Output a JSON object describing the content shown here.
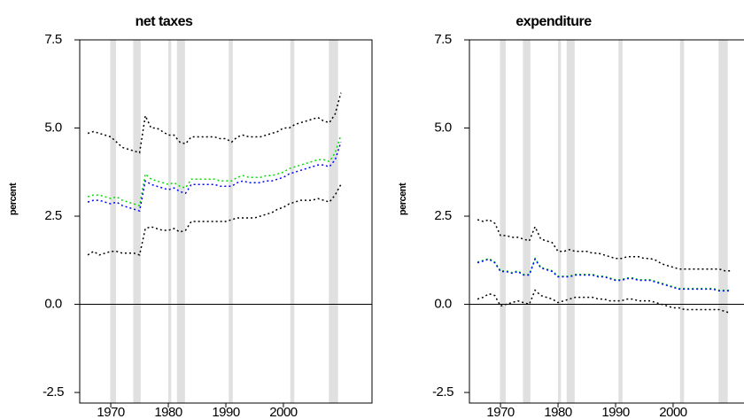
{
  "chart_data": [
    {
      "type": "line",
      "title": "net taxes",
      "y_label": "percent",
      "x": [
        1966,
        1967,
        1968,
        1969,
        1970,
        1971,
        1972,
        1973,
        1974,
        1975,
        1976,
        1977,
        1978,
        1979,
        1980,
        1981,
        1982,
        1983,
        1984,
        1985,
        1986,
        1987,
        1988,
        1989,
        1990,
        1991,
        1992,
        1993,
        1994,
        1995,
        1996,
        1997,
        1998,
        1999,
        2000,
        2001,
        2002,
        2003,
        2004,
        2005,
        2006,
        2007,
        2008,
        2009,
        2010
      ],
      "series": [
        {
          "color": "#000000",
          "values": [
            4.85,
            4.9,
            4.85,
            4.8,
            4.75,
            4.6,
            4.45,
            4.4,
            4.35,
            4.3,
            5.35,
            5.0,
            5.0,
            4.9,
            4.8,
            4.8,
            4.6,
            4.55,
            4.75,
            4.75,
            4.75,
            4.75,
            4.75,
            4.7,
            4.7,
            4.6,
            4.75,
            4.8,
            4.75,
            4.75,
            4.75,
            4.8,
            4.85,
            4.9,
            5.0,
            5.0,
            5.1,
            5.15,
            5.2,
            5.25,
            5.3,
            5.2,
            5.15,
            5.4,
            6.0
          ]
        },
        {
          "color": "#00dd00",
          "values": [
            3.05,
            3.1,
            3.1,
            3.05,
            3.0,
            3.05,
            2.95,
            2.9,
            2.85,
            2.8,
            3.7,
            3.55,
            3.5,
            3.45,
            3.4,
            3.45,
            3.35,
            3.3,
            3.55,
            3.55,
            3.55,
            3.55,
            3.55,
            3.5,
            3.5,
            3.5,
            3.6,
            3.65,
            3.6,
            3.6,
            3.6,
            3.65,
            3.65,
            3.7,
            3.75,
            3.85,
            3.9,
            3.95,
            4.0,
            4.05,
            4.1,
            4.1,
            4.05,
            4.3,
            4.8
          ]
        },
        {
          "color": "#0000ff",
          "values": [
            2.9,
            2.95,
            2.95,
            2.9,
            2.85,
            2.9,
            2.8,
            2.75,
            2.7,
            2.65,
            3.5,
            3.4,
            3.35,
            3.3,
            3.25,
            3.3,
            3.2,
            3.15,
            3.4,
            3.4,
            3.4,
            3.4,
            3.4,
            3.35,
            3.35,
            3.35,
            3.45,
            3.5,
            3.45,
            3.45,
            3.45,
            3.5,
            3.5,
            3.55,
            3.6,
            3.7,
            3.75,
            3.8,
            3.85,
            3.9,
            3.95,
            3.95,
            3.9,
            4.1,
            4.6
          ]
        },
        {
          "color": "#000000",
          "values": [
            1.4,
            1.5,
            1.4,
            1.45,
            1.5,
            1.5,
            1.45,
            1.45,
            1.45,
            1.4,
            2.15,
            2.2,
            2.15,
            2.1,
            2.1,
            2.15,
            2.05,
            2.1,
            2.35,
            2.35,
            2.35,
            2.35,
            2.35,
            2.35,
            2.35,
            2.4,
            2.45,
            2.45,
            2.45,
            2.45,
            2.5,
            2.55,
            2.6,
            2.7,
            2.75,
            2.85,
            2.9,
            2.95,
            2.95,
            2.95,
            3.0,
            2.95,
            2.9,
            3.1,
            3.4
          ]
        }
      ],
      "shading": [
        [
          1969.9,
          1970.9
        ],
        [
          1973.9,
          1975.2
        ],
        [
          1980.0,
          1980.5
        ],
        [
          1981.5,
          1982.9
        ],
        [
          1990.5,
          1991.2
        ],
        [
          2001.2,
          2001.9
        ],
        [
          2007.9,
          2009.5
        ]
      ],
      "hline": 0,
      "xlim": [
        1964.6,
        2015.4
      ],
      "xticks": [
        1970,
        1980,
        1990,
        2000
      ],
      "ylim": [
        -2.8,
        7.5
      ],
      "yticks": [
        7.5,
        {
          "value": 5,
          "label": "5.0"
        },
        {
          "value": 2.5,
          "label": "2.5"
        },
        {
          "value": 0,
          "label": "0.0"
        },
        -2.5
      ]
    },
    {
      "type": "line",
      "title": "expenditure",
      "y_label": "percent",
      "x": [
        1966,
        1967,
        1968,
        1969,
        1970,
        1971,
        1972,
        1973,
        1974,
        1975,
        1976,
        1977,
        1978,
        1979,
        1980,
        1981,
        1982,
        1983,
        1984,
        1985,
        1986,
        1987,
        1988,
        1989,
        1990,
        1991,
        1992,
        1993,
        1994,
        1995,
        1996,
        1997,
        1998,
        1999,
        2000,
        2001,
        2002,
        2003,
        2004,
        2005,
        2006,
        2007,
        2008,
        2009,
        2010
      ],
      "series": [
        {
          "color": "#000000",
          "values": [
            2.4,
            2.35,
            2.4,
            2.3,
            1.95,
            1.95,
            1.9,
            1.9,
            1.85,
            1.8,
            2.2,
            1.85,
            1.8,
            1.75,
            1.5,
            1.5,
            1.55,
            1.5,
            1.5,
            1.5,
            1.45,
            1.45,
            1.4,
            1.35,
            1.3,
            1.3,
            1.35,
            1.35,
            1.35,
            1.3,
            1.3,
            1.25,
            1.15,
            1.1,
            1.05,
            1.0,
            1.0,
            1.0,
            1.0,
            1.0,
            1.0,
            1.0,
            1.0,
            0.95,
            0.95
          ]
        },
        {
          "color": "#00dd00",
          "values": [
            1.2,
            1.25,
            1.3,
            1.2,
            0.95,
            0.95,
            0.9,
            0.95,
            0.85,
            0.85,
            1.3,
            1.05,
            1.0,
            0.95,
            0.8,
            0.8,
            0.8,
            0.85,
            0.85,
            0.85,
            0.85,
            0.8,
            0.8,
            0.75,
            0.7,
            0.7,
            0.75,
            0.75,
            0.7,
            0.7,
            0.7,
            0.65,
            0.6,
            0.55,
            0.5,
            0.45,
            0.45,
            0.45,
            0.45,
            0.45,
            0.45,
            0.45,
            0.4,
            0.4,
            0.4
          ]
        },
        {
          "color": "#0000ff",
          "values": [
            1.18,
            1.23,
            1.28,
            1.18,
            0.93,
            0.93,
            0.88,
            0.93,
            0.83,
            0.83,
            1.28,
            1.03,
            0.98,
            0.93,
            0.78,
            0.78,
            0.78,
            0.83,
            0.83,
            0.83,
            0.83,
            0.78,
            0.78,
            0.73,
            0.68,
            0.68,
            0.73,
            0.73,
            0.68,
            0.68,
            0.68,
            0.63,
            0.58,
            0.53,
            0.48,
            0.43,
            0.43,
            0.43,
            0.43,
            0.43,
            0.43,
            0.43,
            0.38,
            0.38,
            0.38
          ]
        },
        {
          "color": "#000000",
          "values": [
            0.15,
            0.2,
            0.3,
            0.25,
            -0.05,
            0.0,
            0.05,
            0.1,
            0.05,
            0.0,
            0.4,
            0.25,
            0.2,
            0.15,
            0.05,
            0.1,
            0.15,
            0.2,
            0.2,
            0.2,
            0.2,
            0.15,
            0.15,
            0.1,
            0.1,
            0.1,
            0.15,
            0.15,
            0.1,
            0.1,
            0.1,
            0.05,
            0.0,
            -0.05,
            -0.1,
            -0.1,
            -0.15,
            -0.15,
            -0.15,
            -0.15,
            -0.15,
            -0.15,
            -0.15,
            -0.2,
            -0.25
          ]
        }
      ],
      "shading": [
        [
          1969.9,
          1970.9
        ],
        [
          1973.9,
          1975.2
        ],
        [
          1980.0,
          1980.5
        ],
        [
          1981.5,
          1982.9
        ],
        [
          1990.5,
          1991.2
        ],
        [
          2001.2,
          2001.9
        ],
        [
          2007.9,
          2009.5
        ]
      ],
      "hline": 0,
      "xlim": [
        1964.6,
        2015.4
      ],
      "xticks": [
        1970,
        1980,
        1990,
        2000
      ],
      "ylim": [
        -2.8,
        7.5
      ],
      "yticks": [
        7.5,
        {
          "value": 5,
          "label": "5.0"
        },
        {
          "value": 2.5,
          "label": "2.5"
        },
        {
          "value": 0,
          "label": "0.0"
        },
        -2.5
      ]
    }
  ]
}
